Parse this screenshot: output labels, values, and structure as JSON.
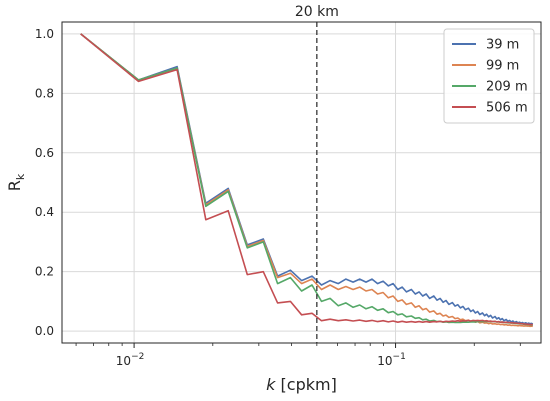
{
  "chart_data": {
    "type": "line",
    "title": "",
    "xscale": "log",
    "xlim": [
      0.0053,
      0.36
    ],
    "ylim": [
      -0.04,
      1.04
    ],
    "xlabel_italic": "k",
    "xlabel_rest": " [cpkm]",
    "ylabel_main": "R",
    "ylabel_sub": "k",
    "yticks": [
      0.0,
      0.2,
      0.4,
      0.6,
      0.8,
      1.0
    ],
    "ytick_labels": [
      "0.0",
      "0.2",
      "0.4",
      "0.6",
      "0.8",
      "1.0"
    ],
    "xticks_major": [
      {
        "value": 0.01,
        "base": "10",
        "exp": "−2"
      },
      {
        "value": 0.1,
        "base": "10",
        "exp": "−1"
      }
    ],
    "grid": true,
    "legend_position": "top-right",
    "vline": {
      "x": 0.05,
      "label": "20 km",
      "style": "dashed"
    },
    "x": [
      0.00625,
      0.0104,
      0.0146,
      0.0188,
      0.0229,
      0.0271,
      0.0312,
      0.0354,
      0.0396,
      0.0437,
      0.0479,
      0.0521,
      0.0562,
      0.0604,
      0.0646,
      0.0688,
      0.0729,
      0.0771,
      0.0813,
      0.0854,
      0.0896,
      0.0938,
      0.0979,
      0.102,
      0.106,
      0.11,
      0.115,
      0.119,
      0.123,
      0.127,
      0.131,
      0.135,
      0.14,
      0.144,
      0.148,
      0.152,
      0.156,
      0.16,
      0.165,
      0.169,
      0.173,
      0.177,
      0.181,
      0.185,
      0.19,
      0.194,
      0.198,
      0.202,
      0.206,
      0.21,
      0.215,
      0.219,
      0.223,
      0.227,
      0.231,
      0.235,
      0.24,
      0.244,
      0.248,
      0.252,
      0.256,
      0.26,
      0.265,
      0.269,
      0.273,
      0.277,
      0.281,
      0.285,
      0.29,
      0.294,
      0.298,
      0.302,
      0.306,
      0.31,
      0.315,
      0.319,
      0.323,
      0.327,
      0.331,
      0.335
    ],
    "series": [
      {
        "name": "39 m",
        "color": "#4c72b0",
        "values": [
          1.0,
          0.845,
          0.89,
          0.43,
          0.48,
          0.29,
          0.31,
          0.185,
          0.205,
          0.17,
          0.185,
          0.155,
          0.17,
          0.16,
          0.175,
          0.165,
          0.175,
          0.165,
          0.175,
          0.16,
          0.168,
          0.152,
          0.16,
          0.14,
          0.148,
          0.132,
          0.14,
          0.125,
          0.132,
          0.118,
          0.125,
          0.11,
          0.118,
          0.104,
          0.11,
          0.097,
          0.103,
          0.09,
          0.096,
          0.084,
          0.089,
          0.078,
          0.083,
          0.072,
          0.077,
          0.066,
          0.071,
          0.061,
          0.066,
          0.056,
          0.061,
          0.052,
          0.057,
          0.048,
          0.053,
          0.044,
          0.049,
          0.041,
          0.045,
          0.038,
          0.042,
          0.035,
          0.039,
          0.033,
          0.036,
          0.031,
          0.034,
          0.029,
          0.032,
          0.028,
          0.03,
          0.027,
          0.029,
          0.026,
          0.028,
          0.025,
          0.027,
          0.025,
          0.026,
          0.024
        ]
      },
      {
        "name": "99 m",
        "color": "#dd8452",
        "values": [
          1.0,
          0.845,
          0.885,
          0.425,
          0.475,
          0.285,
          0.305,
          0.18,
          0.195,
          0.16,
          0.175,
          0.14,
          0.155,
          0.14,
          0.15,
          0.14,
          0.148,
          0.135,
          0.14,
          0.125,
          0.13,
          0.112,
          0.118,
          0.1,
          0.105,
          0.09,
          0.095,
          0.08,
          0.085,
          0.072,
          0.076,
          0.064,
          0.068,
          0.057,
          0.06,
          0.051,
          0.054,
          0.046,
          0.049,
          0.042,
          0.044,
          0.038,
          0.04,
          0.035,
          0.037,
          0.032,
          0.034,
          0.03,
          0.032,
          0.028,
          0.03,
          0.027,
          0.028,
          0.025,
          0.027,
          0.024,
          0.025,
          0.023,
          0.024,
          0.022,
          0.023,
          0.021,
          0.022,
          0.02,
          0.021,
          0.019,
          0.02,
          0.019,
          0.019,
          0.018,
          0.019,
          0.018,
          0.018,
          0.017,
          0.018,
          0.017,
          0.017,
          0.016,
          0.017,
          0.016
        ]
      },
      {
        "name": "209 m",
        "color": "#55a868",
        "values": [
          1.0,
          0.845,
          0.885,
          0.42,
          0.47,
          0.28,
          0.3,
          0.16,
          0.18,
          0.135,
          0.155,
          0.1,
          0.11,
          0.085,
          0.095,
          0.08,
          0.088,
          0.075,
          0.082,
          0.07,
          0.075,
          0.062,
          0.066,
          0.055,
          0.058,
          0.048,
          0.051,
          0.043,
          0.045,
          0.038,
          0.04,
          0.034,
          0.036,
          0.032,
          0.033,
          0.03,
          0.031,
          0.029,
          0.03,
          0.029,
          0.029,
          0.029,
          0.03,
          0.03,
          0.03,
          0.031,
          0.031,
          0.031,
          0.032,
          0.032,
          0.032,
          0.032,
          0.033,
          0.032,
          0.033,
          0.032,
          0.032,
          0.031,
          0.031,
          0.03,
          0.03,
          0.029,
          0.029,
          0.028,
          0.028,
          0.027,
          0.027,
          0.026,
          0.026,
          0.025,
          0.025,
          0.024,
          0.024,
          0.023,
          0.023,
          0.022,
          0.022,
          0.021,
          0.021,
          0.021
        ]
      },
      {
        "name": "506 m",
        "color": "#c44e52",
        "values": [
          1.0,
          0.84,
          0.88,
          0.375,
          0.405,
          0.19,
          0.2,
          0.095,
          0.1,
          0.055,
          0.06,
          0.035,
          0.04,
          0.035,
          0.038,
          0.034,
          0.037,
          0.033,
          0.036,
          0.032,
          0.035,
          0.031,
          0.034,
          0.03,
          0.033,
          0.03,
          0.032,
          0.03,
          0.032,
          0.03,
          0.032,
          0.03,
          0.032,
          0.031,
          0.033,
          0.031,
          0.033,
          0.032,
          0.034,
          0.033,
          0.035,
          0.033,
          0.035,
          0.034,
          0.036,
          0.034,
          0.036,
          0.035,
          0.036,
          0.035,
          0.036,
          0.034,
          0.035,
          0.033,
          0.034,
          0.032,
          0.033,
          0.031,
          0.032,
          0.03,
          0.031,
          0.029,
          0.03,
          0.029,
          0.029,
          0.028,
          0.028,
          0.027,
          0.027,
          0.026,
          0.026,
          0.025,
          0.025,
          0.024,
          0.024,
          0.023,
          0.023,
          0.022,
          0.022,
          0.022
        ]
      }
    ]
  }
}
